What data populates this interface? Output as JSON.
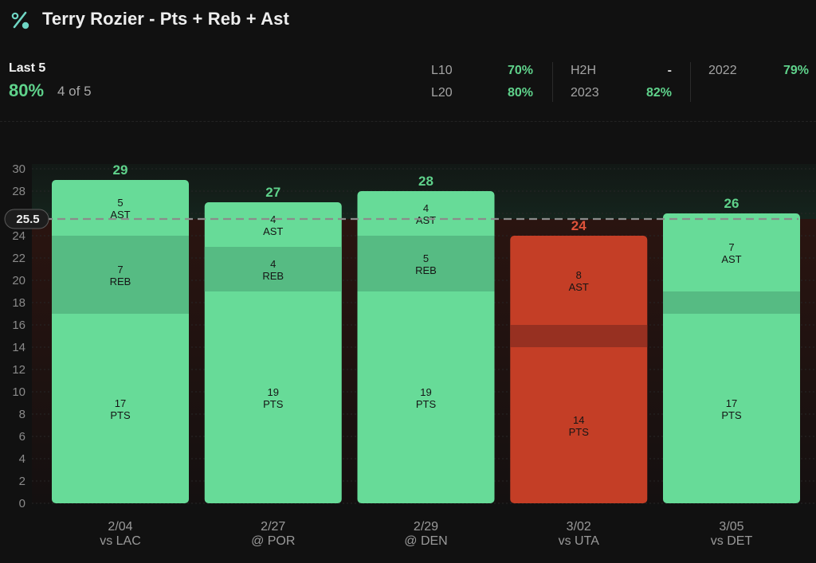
{
  "header": {
    "title": "Terry Rozier - Pts + Reb + Ast",
    "icon": "percent-icon"
  },
  "summary": {
    "label": "Last 5",
    "percent": "80%",
    "count": "4 of 5"
  },
  "stats": [
    {
      "label": "L10",
      "value": "70%"
    },
    {
      "label": "L20",
      "value": "80%"
    },
    {
      "label": "H2H",
      "value": "-"
    },
    {
      "label": "2023",
      "value": "82%"
    },
    {
      "label": "2022",
      "value": "79%"
    }
  ],
  "colors": {
    "over": "#67db98",
    "over_mid": "#56bb83",
    "under": "#c43e26",
    "under_mid": "#973021",
    "over_total": "#5fd28b",
    "under_total": "#e0533a"
  },
  "chart_data": {
    "type": "bar",
    "stacked": true,
    "line": 25.5,
    "line_label": "25.5",
    "ylim": [
      0,
      30
    ],
    "yticks": [
      "0",
      "2",
      "4",
      "6",
      "8",
      "10",
      "12",
      "14",
      "16",
      "18",
      "20",
      "22",
      "24",
      "26",
      "28",
      "30"
    ],
    "categories": [
      {
        "date": "2/04",
        "opponent": "vs LAC"
      },
      {
        "date": "2/27",
        "opponent": "@ POR"
      },
      {
        "date": "2/29",
        "opponent": "@ DEN"
      },
      {
        "date": "3/02",
        "opponent": "vs UTA"
      },
      {
        "date": "3/05",
        "opponent": "vs DET"
      }
    ],
    "series": [
      {
        "name": "PTS",
        "values": [
          17,
          19,
          19,
          14,
          17
        ]
      },
      {
        "name": "REB",
        "values": [
          7,
          4,
          5,
          2,
          2
        ]
      },
      {
        "name": "AST",
        "values": [
          5,
          4,
          4,
          8,
          7
        ]
      }
    ],
    "totals": [
      29,
      27,
      28,
      24,
      26
    ],
    "segment_labels": [
      {
        "PTS": "17",
        "REB": "7",
        "AST": "5"
      },
      {
        "PTS": "19",
        "REB": "4",
        "AST": "4"
      },
      {
        "PTS": "19",
        "REB": "5",
        "AST": "4"
      },
      {
        "PTS": "14",
        "REB": "",
        "AST": "8"
      },
      {
        "PTS": "17",
        "REB": "",
        "AST": "7"
      }
    ]
  }
}
